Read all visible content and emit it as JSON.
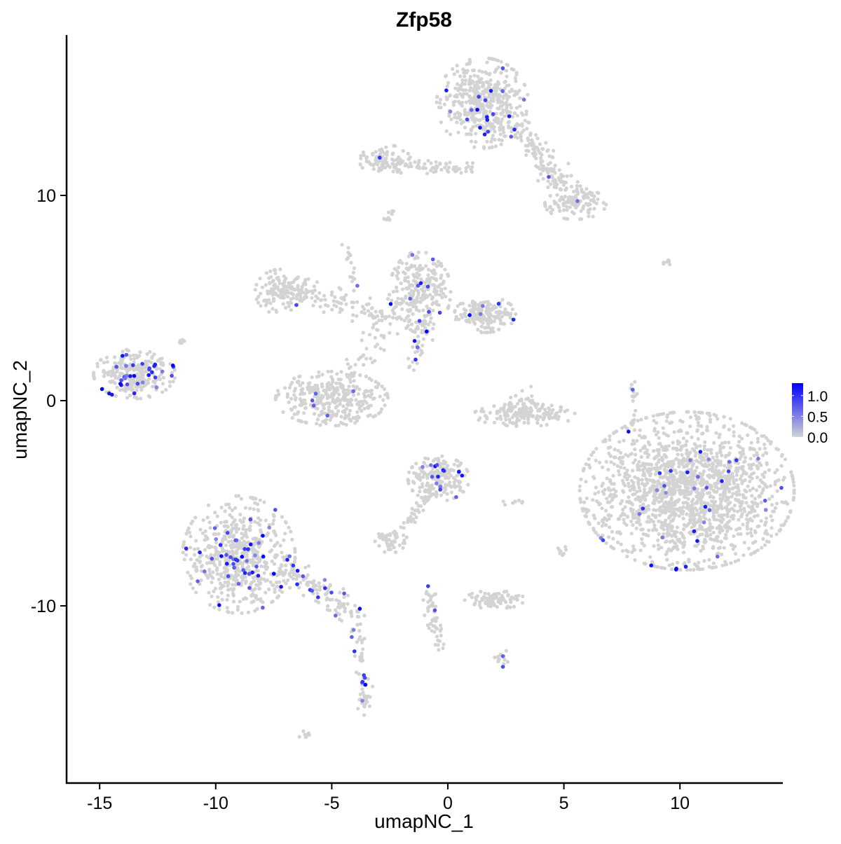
{
  "chart_data": {
    "type": "scatter",
    "title": "Zfp58",
    "xlabel": "umapNC_1",
    "ylabel": "umapNC_2",
    "xlim": [
      -16.4,
      14.4
    ],
    "ylim": [
      -18.4,
      17.7
    ],
    "xticks": [
      -15,
      -10,
      -5,
      0,
      5,
      10
    ],
    "yticks": [
      -10,
      0,
      10
    ],
    "grid": false,
    "legend": {
      "placement": "right",
      "ticks": [
        "0.0",
        "0.5",
        "1.0"
      ],
      "range": [
        0,
        1.3
      ],
      "low_color": "#d3d3d3",
      "high_color": "#0000ff"
    },
    "clusters": [
      {
        "cx": 10.3,
        "cy": -4.4,
        "sx": 2.1,
        "sy": 1.75,
        "n": 1700,
        "expr_frac": 0.03
      },
      {
        "cx": 1.5,
        "cy": 14.5,
        "sx": 0.9,
        "sy": 1.0,
        "n": 450,
        "expr_frac": 0.05
      },
      {
        "cx": -2.7,
        "cy": 11.7,
        "sx": 0.5,
        "sy": 0.35,
        "n": 90,
        "expr_frac": 0.02
      },
      {
        "cx": 5.5,
        "cy": 9.6,
        "sx": 0.6,
        "sy": 0.35,
        "n": 110,
        "expr_frac": 0.0
      },
      {
        "cx": -1.2,
        "cy": 5.3,
        "sx": 0.6,
        "sy": 0.9,
        "n": 260,
        "expr_frac": 0.04
      },
      {
        "cx": 1.6,
        "cy": 4.2,
        "sx": 0.6,
        "sy": 0.4,
        "n": 180,
        "expr_frac": 0.04
      },
      {
        "cx": -7.2,
        "cy": 5.3,
        "sx": 0.5,
        "sy": 0.5,
        "n": 120,
        "expr_frac": 0.01
      },
      {
        "cx": -5.0,
        "cy": 0.1,
        "sx": 1.1,
        "sy": 0.6,
        "n": 350,
        "expr_frac": 0.02
      },
      {
        "cx": -13.5,
        "cy": 1.3,
        "sx": 0.8,
        "sy": 0.55,
        "n": 280,
        "expr_frac": 0.1
      },
      {
        "cx": -9.0,
        "cy": -7.5,
        "sx": 1.1,
        "sy": 1.3,
        "n": 600,
        "expr_frac": 0.07
      },
      {
        "cx": -0.4,
        "cy": -3.8,
        "sx": 0.6,
        "sy": 0.5,
        "n": 200,
        "expr_frac": 0.06
      },
      {
        "cx": 3.3,
        "cy": -0.7,
        "sx": 1.0,
        "sy": 0.25,
        "n": 160,
        "expr_frac": 0.0
      },
      {
        "cx": 2.0,
        "cy": -9.7,
        "sx": 0.6,
        "sy": 0.2,
        "n": 80,
        "expr_frac": 0.0
      },
      {
        "cx": -2.5,
        "cy": -6.9,
        "sx": 0.35,
        "sy": 0.25,
        "n": 50,
        "expr_frac": 0.0
      },
      {
        "cx": 3.2,
        "cy": -0.2,
        "sx": 0.3,
        "sy": 0.5,
        "n": 40,
        "expr_frac": 0.0
      }
    ],
    "trails": [
      {
        "from": [
          -7.8,
          -7.5
        ],
        "to": [
          -3.7,
          -10.6
        ],
        "n": 140,
        "spread": 0.3,
        "expr_frac": 0.12
      },
      {
        "from": [
          -3.9,
          -11.0
        ],
        "to": [
          -3.5,
          -15.3
        ],
        "n": 60,
        "spread": 0.15,
        "expr_frac": 0.08
      },
      {
        "from": [
          2.8,
          13.5
        ],
        "to": [
          5.7,
          9.6
        ],
        "n": 160,
        "spread": 0.35,
        "expr_frac": 0.03
      },
      {
        "from": [
          -1.8,
          11.5
        ],
        "to": [
          1.0,
          11.3
        ],
        "n": 60,
        "spread": 0.15,
        "expr_frac": 0.03
      },
      {
        "from": [
          -7.0,
          5.6
        ],
        "to": [
          -2.2,
          3.9
        ],
        "n": 120,
        "spread": 0.3,
        "expr_frac": 0.0
      },
      {
        "from": [
          -4.5,
          0.6
        ],
        "to": [
          -2.0,
          5.0
        ],
        "n": 50,
        "spread": 0.3,
        "expr_frac": 0.0
      },
      {
        "from": [
          -1.0,
          4.0
        ],
        "to": [
          -1.5,
          1.5
        ],
        "n": 40,
        "spread": 0.2,
        "expr_frac": 0.1
      },
      {
        "from": [
          -0.8,
          -4.5
        ],
        "to": [
          -1.8,
          -6.3
        ],
        "n": 40,
        "spread": 0.15,
        "expr_frac": 0.0
      },
      {
        "from": [
          -0.9,
          -9.2
        ],
        "to": [
          -0.3,
          -12.2
        ],
        "n": 50,
        "spread": 0.15,
        "expr_frac": 0.04
      },
      {
        "from": [
          -4.3,
          7.5
        ],
        "to": [
          -4.0,
          5.5
        ],
        "n": 15,
        "spread": 0.1,
        "expr_frac": 0.1
      },
      {
        "from": [
          8.0,
          0.8
        ],
        "to": [
          8.0,
          -1.0
        ],
        "n": 15,
        "spread": 0.1,
        "expr_frac": 0.1
      },
      {
        "from": [
          -6.3,
          -16.4
        ],
        "to": [
          -6.0,
          -16.2
        ],
        "n": 8,
        "spread": 0.1,
        "expr_frac": 0.0
      },
      {
        "from": [
          2.1,
          -12.5
        ],
        "to": [
          2.5,
          -12.7
        ],
        "n": 15,
        "spread": 0.15,
        "expr_frac": 0.05
      },
      {
        "from": [
          4.9,
          -7.1
        ],
        "to": [
          5.0,
          -7.6
        ],
        "n": 8,
        "spread": 0.1,
        "expr_frac": 0.0
      },
      {
        "from": [
          3.2,
          -4.9
        ],
        "to": [
          2.4,
          -5.0
        ],
        "n": 8,
        "spread": 0.1,
        "expr_frac": 0.0
      },
      {
        "from": [
          -2.7,
          8.9
        ],
        "to": [
          -2.4,
          9.1
        ],
        "n": 10,
        "spread": 0.1,
        "expr_frac": 0.0
      },
      {
        "from": [
          9.3,
          6.7
        ],
        "to": [
          9.7,
          6.8
        ],
        "n": 6,
        "spread": 0.05,
        "expr_frac": 0.0
      },
      {
        "from": [
          -11.6,
          2.8
        ],
        "to": [
          -11.3,
          2.9
        ],
        "n": 6,
        "spread": 0.05,
        "expr_frac": 0.0
      }
    ]
  }
}
